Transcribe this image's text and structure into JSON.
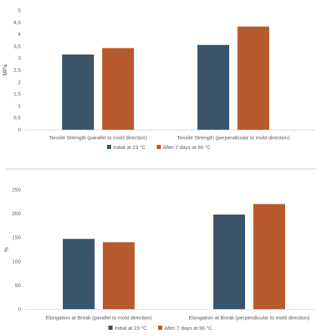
{
  "colors": {
    "initial": "#3a5569",
    "aged": "#b95a2e",
    "axis": "#d9d9d9",
    "divider": "#a6a6a6"
  },
  "chart_data": [
    {
      "type": "bar",
      "ylabel": "MPa",
      "ylim": [
        0,
        5
      ],
      "yticks": [
        "0",
        "0,5",
        "1",
        "1,5",
        "2",
        "2,5",
        "3",
        "3,5",
        "4",
        "4,5",
        "5"
      ],
      "yticks_values": [
        0,
        0.5,
        1,
        1.5,
        2,
        2.5,
        3,
        3.5,
        4,
        4.5,
        5
      ],
      "categories": [
        "Tensile Strength (parallel to mold direction)",
        "Tensile Strength (perpendicular to mold direction)"
      ],
      "series": [
        {
          "name": "Initial at 23 °C",
          "values": [
            3.15,
            3.55
          ]
        },
        {
          "name": "After 7 days at 90 °C",
          "values": [
            3.42,
            4.32
          ]
        }
      ],
      "legend": "bottom",
      "grid": false
    },
    {
      "type": "bar",
      "ylabel": "%",
      "ylim": [
        0,
        250
      ],
      "yticks": [
        "0",
        "50",
        "100",
        "150",
        "200",
        "250"
      ],
      "yticks_values": [
        0,
        50,
        100,
        150,
        200,
        250
      ],
      "categories": [
        "Elongation at Break (parallel to mold direction)",
        "Elongation at Break (perpendicular to mold direction)"
      ],
      "series": [
        {
          "name": "Initial at 23 °C",
          "values": [
            147,
            198
          ]
        },
        {
          "name": "After 7 days at 90 °C",
          "values": [
            140,
            220
          ]
        }
      ],
      "legend": "bottom",
      "grid": false
    }
  ]
}
